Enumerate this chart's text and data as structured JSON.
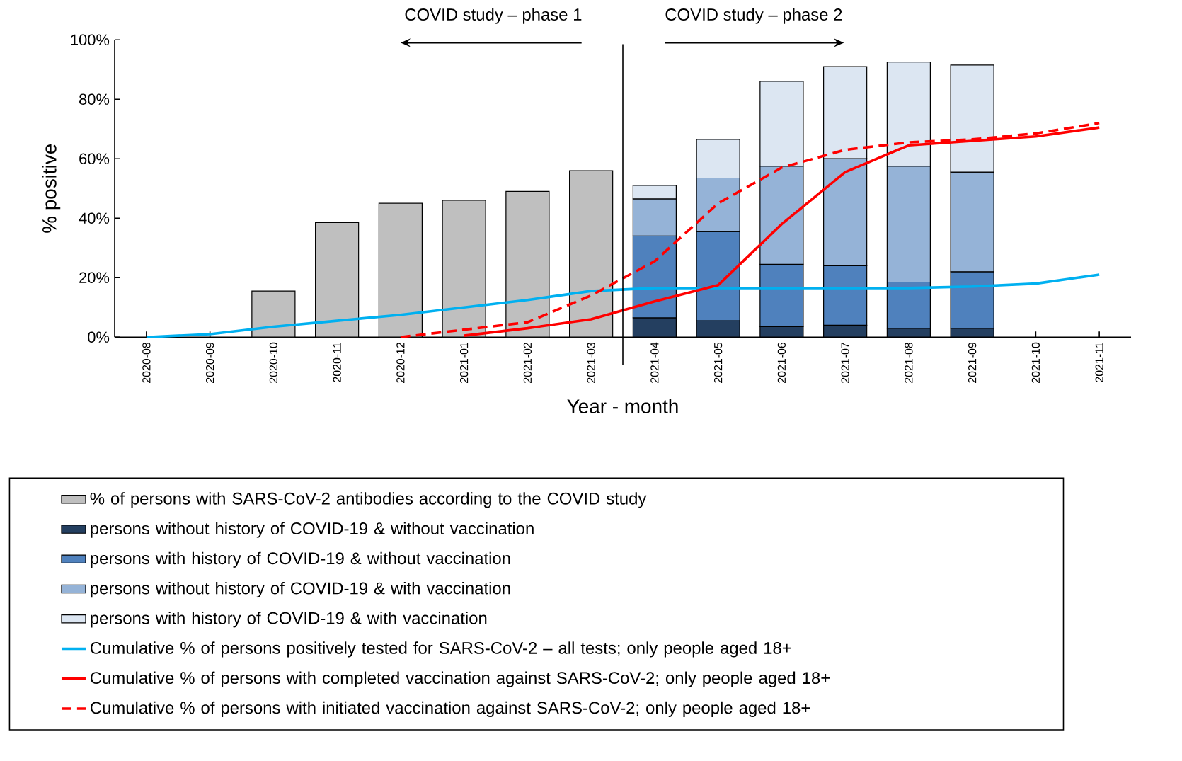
{
  "chart_data": {
    "type": "bar",
    "xlabel": "Year - month",
    "ylabel": "% positive",
    "categories": [
      "2020-08",
      "2020-09",
      "2020-10",
      "2020-11",
      "2020-12",
      "2021-01",
      "2021-02",
      "2021-03",
      "2021-04",
      "2021-05",
      "2021-06",
      "2021-07",
      "2021-08",
      "2021-09",
      "2021-10",
      "2021-11"
    ],
    "stacked": true,
    "ylim": [
      0,
      100
    ],
    "yticks": [
      {
        "value": 0,
        "label": "0%"
      },
      {
        "value": 20,
        "label": "20%"
      },
      {
        "value": 40,
        "label": "40%"
      },
      {
        "value": 60,
        "label": "60%"
      },
      {
        "value": 80,
        "label": "80%"
      },
      {
        "value": 100,
        "label": "100%"
      }
    ],
    "series": [
      {
        "name": "% of persons with SARS-CoV-2 antibodies according to the COVID study",
        "color": "#bfbfbf",
        "values": [
          null,
          null,
          15.5,
          38.5,
          45,
          46,
          49,
          56,
          null,
          null,
          null,
          null,
          null,
          null,
          null,
          null
        ]
      },
      {
        "name": "persons without history of COVID-19 & without vaccination",
        "color": "#243f60",
        "values": [
          null,
          null,
          null,
          null,
          null,
          null,
          null,
          null,
          6.5,
          5.5,
          3.5,
          4,
          3,
          3,
          null,
          null
        ]
      },
      {
        "name": "persons with history of COVID-19 & without vaccination",
        "color": "#4f81bd",
        "values": [
          null,
          null,
          null,
          null,
          null,
          null,
          null,
          null,
          27.5,
          30,
          21,
          20,
          15.5,
          19,
          null,
          null
        ]
      },
      {
        "name": "persons without history of COVID-19 & with vaccination",
        "color": "#95b3d7",
        "values": [
          null,
          null,
          null,
          null,
          null,
          null,
          null,
          null,
          12.5,
          18,
          33,
          36,
          39,
          33.5,
          null,
          null
        ]
      },
      {
        "name": "persons with history of COVID-19 & with vaccination",
        "color": "#dce6f2",
        "values": [
          null,
          null,
          null,
          null,
          null,
          null,
          null,
          null,
          4.5,
          13,
          28.5,
          31,
          35,
          36,
          null,
          null
        ]
      },
      {
        "name": "Cumulative % of persons positively tested for SARS-CoV-2 – all tests; only people aged 18+",
        "type": "line",
        "color": "#00b0f0",
        "values": [
          0,
          1,
          3.5,
          5.5,
          7.5,
          10,
          12.5,
          15.5,
          16.5,
          16.5,
          16.5,
          16.5,
          16.5,
          17,
          18,
          21
        ]
      },
      {
        "name": "Cumulative % of persons with completed vaccination against SARS-CoV-2; only people aged 18+",
        "type": "line",
        "color": "#ff0000",
        "values": [
          null,
          null,
          null,
          null,
          null,
          0.5,
          3,
          6,
          12,
          17.5,
          38,
          55.5,
          64.5,
          66,
          67.5,
          70.5
        ]
      },
      {
        "name": "Cumulative % of persons with initiated vaccination against SARS-CoV-2; only people aged 18+",
        "type": "line",
        "line_style": "dashed",
        "color": "#ff0000",
        "values": [
          null,
          null,
          null,
          null,
          0,
          2.5,
          5,
          14,
          25.5,
          45,
          57,
          63,
          65.5,
          66.5,
          68.5,
          72
        ]
      }
    ],
    "annotations": [
      "COVID study – phase 1",
      "COVID study – phase 2"
    ],
    "legend": "bottom"
  }
}
